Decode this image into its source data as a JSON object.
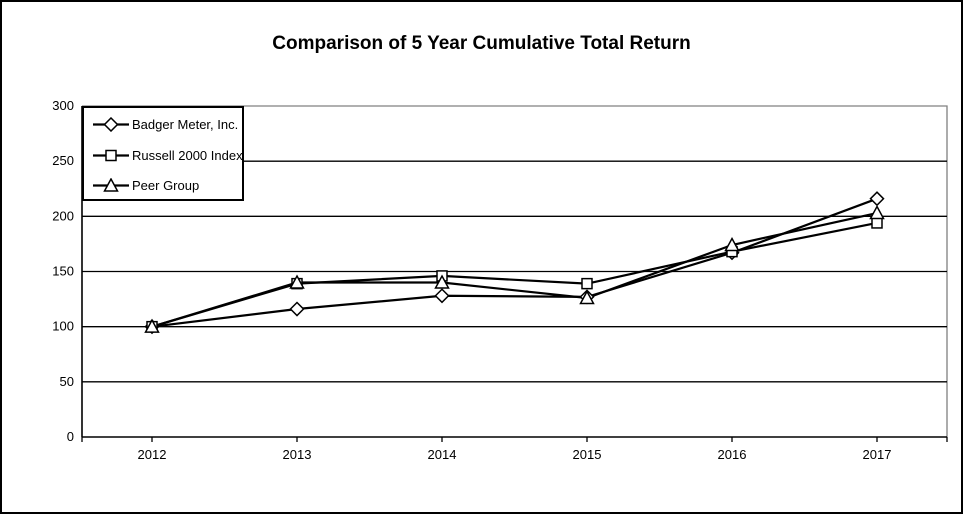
{
  "window": {
    "background_color": "#ffffff",
    "border_color": "#000000"
  },
  "chart_data": {
    "type": "line",
    "title": "Comparison of 5 Year Cumulative Total Return",
    "categories": [
      "2012",
      "2013",
      "2014",
      "2015",
      "2016",
      "2017"
    ],
    "series": [
      {
        "name": "Badger Meter, Inc.",
        "marker": "diamond",
        "values": [
          100,
          116,
          128,
          127,
          167,
          216
        ]
      },
      {
        "name": "Russell 2000 Index",
        "marker": "square",
        "values": [
          100,
          139,
          146,
          139,
          168,
          194
        ]
      },
      {
        "name": "Peer Group",
        "marker": "triangle",
        "values": [
          100,
          140,
          140,
          126,
          174,
          203
        ]
      }
    ],
    "y_axis": {
      "min": 0,
      "max": 300,
      "step": 50,
      "tick_labels": [
        "0",
        "50",
        "100",
        "150",
        "200",
        "250",
        "300"
      ]
    },
    "x_axis": {
      "tick_labels": [
        "2012",
        "2013",
        "2014",
        "2015",
        "2016",
        "2017"
      ]
    },
    "grid": "horizontal",
    "legend_position": "top-left-inside",
    "line_color": "#000000",
    "marker_fill": "#ffffff",
    "frame_color": "#808080"
  }
}
